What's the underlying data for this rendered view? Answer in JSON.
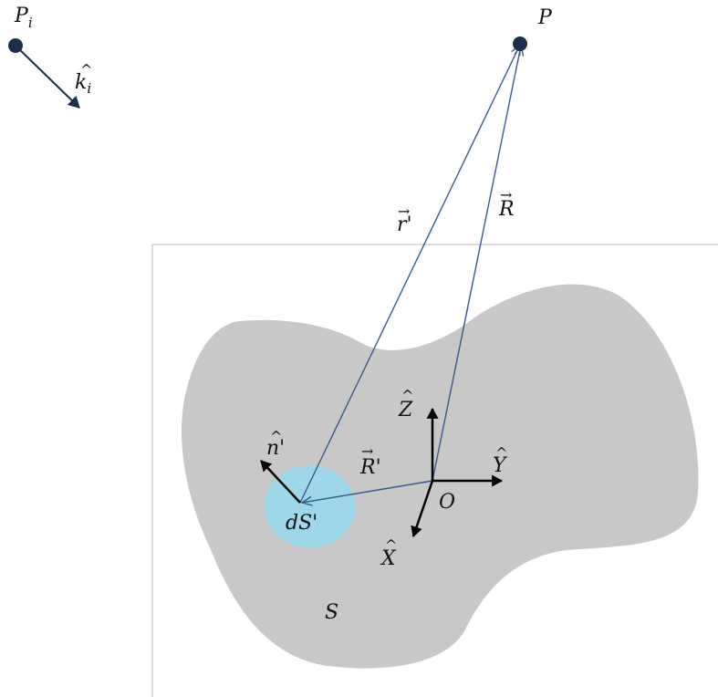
{
  "colors": {
    "background": "#ffffff",
    "surface": "#c8c8c8",
    "patch": "#9ed8e8",
    "ray": "#3a5a8a",
    "axis": "#000000",
    "frame_line": "#bbbbbb",
    "point": "#1c2e4a"
  },
  "labels": {
    "point_i": "P",
    "point_i_sub": "i",
    "wave_dir": "k",
    "wave_dir_sub": "i",
    "point_p": "P",
    "vec_r_prime": "r'",
    "vec_R": "R",
    "vec_R_prime": "R'",
    "normal": "n'",
    "patch": "dS'",
    "surface": "S",
    "origin": "O",
    "axis_x": "X",
    "axis_y": "Y",
    "axis_z": "Z"
  }
}
